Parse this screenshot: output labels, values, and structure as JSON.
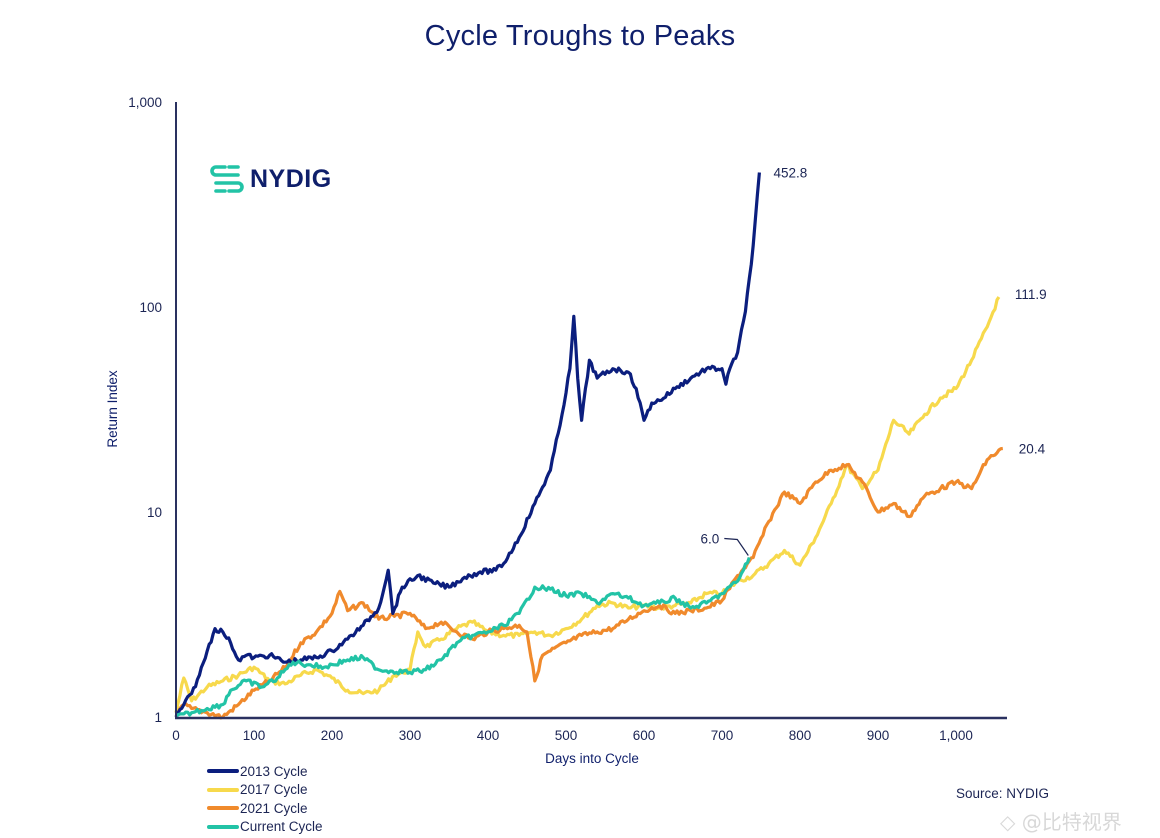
{
  "chart_data": {
    "type": "line",
    "title": "Cycle Troughs to Peaks",
    "xlabel": "Days into Cycle",
    "ylabel": "Return Index",
    "yscale": "log",
    "xlim": [
      0,
      1070
    ],
    "ylim": [
      1,
      1000
    ],
    "x_ticks": [
      0,
      100,
      200,
      300,
      400,
      500,
      600,
      700,
      800,
      900,
      1000
    ],
    "x_tick_labels": [
      "0",
      "100",
      "200",
      "300",
      "400",
      "500",
      "600",
      "700",
      "800",
      "900",
      "1,000"
    ],
    "y_ticks": [
      1,
      10,
      100,
      1000
    ],
    "y_tick_labels": [
      "1",
      "10",
      "100",
      "1,000"
    ],
    "grid": false,
    "legend_position": "bottom-left",
    "series": [
      {
        "name": "2013 Cycle",
        "color": "#0b1e7e",
        "end_label": "452.8",
        "points": [
          [
            0,
            1.0
          ],
          [
            10,
            1.15
          ],
          [
            20,
            1.3
          ],
          [
            30,
            1.6
          ],
          [
            40,
            2.1
          ],
          [
            50,
            2.7
          ],
          [
            60,
            2.6
          ],
          [
            70,
            2.3
          ],
          [
            80,
            1.9
          ],
          [
            90,
            2.0
          ],
          [
            100,
            1.95
          ],
          [
            120,
            2.0
          ],
          [
            140,
            1.85
          ],
          [
            160,
            1.9
          ],
          [
            180,
            1.95
          ],
          [
            200,
            2.1
          ],
          [
            220,
            2.4
          ],
          [
            240,
            2.8
          ],
          [
            260,
            3.4
          ],
          [
            272,
            5.2
          ],
          [
            278,
            3.2
          ],
          [
            290,
            4.3
          ],
          [
            310,
            4.9
          ],
          [
            330,
            4.5
          ],
          [
            350,
            4.3
          ],
          [
            370,
            4.8
          ],
          [
            390,
            5.1
          ],
          [
            410,
            5.2
          ],
          [
            420,
            5.6
          ],
          [
            440,
            7.5
          ],
          [
            460,
            11
          ],
          [
            480,
            16
          ],
          [
            495,
            30
          ],
          [
            505,
            50
          ],
          [
            510,
            90
          ],
          [
            515,
            45
          ],
          [
            520,
            28
          ],
          [
            530,
            55
          ],
          [
            540,
            45
          ],
          [
            560,
            50
          ],
          [
            580,
            48
          ],
          [
            590,
            40
          ],
          [
            600,
            28
          ],
          [
            610,
            34
          ],
          [
            620,
            35
          ],
          [
            640,
            40
          ],
          [
            660,
            45
          ],
          [
            680,
            50
          ],
          [
            700,
            50
          ],
          [
            705,
            42
          ],
          [
            710,
            50
          ],
          [
            720,
            60
          ],
          [
            730,
            95
          ],
          [
            740,
            200
          ],
          [
            748,
            452.8
          ]
        ]
      },
      {
        "name": "2017 Cycle",
        "color": "#f7d94c",
        "end_label": "111.9",
        "points": [
          [
            0,
            1.05
          ],
          [
            10,
            1.55
          ],
          [
            20,
            1.2
          ],
          [
            40,
            1.4
          ],
          [
            60,
            1.5
          ],
          [
            80,
            1.6
          ],
          [
            100,
            1.75
          ],
          [
            120,
            1.5
          ],
          [
            140,
            1.45
          ],
          [
            160,
            1.6
          ],
          [
            180,
            1.7
          ],
          [
            200,
            1.55
          ],
          [
            220,
            1.35
          ],
          [
            240,
            1.3
          ],
          [
            260,
            1.35
          ],
          [
            280,
            1.6
          ],
          [
            300,
            1.7
          ],
          [
            310,
            2.6
          ],
          [
            320,
            2.2
          ],
          [
            340,
            2.4
          ],
          [
            360,
            2.7
          ],
          [
            380,
            2.9
          ],
          [
            400,
            2.6
          ],
          [
            420,
            2.5
          ],
          [
            440,
            2.5
          ],
          [
            460,
            2.6
          ],
          [
            480,
            2.5
          ],
          [
            500,
            2.7
          ],
          [
            520,
            3.0
          ],
          [
            540,
            3.5
          ],
          [
            560,
            3.6
          ],
          [
            580,
            3.4
          ],
          [
            600,
            3.5
          ],
          [
            620,
            3.4
          ],
          [
            640,
            3.5
          ],
          [
            660,
            3.6
          ],
          [
            680,
            4.0
          ],
          [
            700,
            4.0
          ],
          [
            720,
            4.6
          ],
          [
            740,
            4.9
          ],
          [
            760,
            5.6
          ],
          [
            780,
            6.5
          ],
          [
            800,
            5.5
          ],
          [
            820,
            7.5
          ],
          [
            840,
            11
          ],
          [
            860,
            17
          ],
          [
            880,
            13
          ],
          [
            900,
            16
          ],
          [
            920,
            28
          ],
          [
            940,
            24
          ],
          [
            960,
            30
          ],
          [
            980,
            36
          ],
          [
            1000,
            40
          ],
          [
            1020,
            55
          ],
          [
            1040,
            80
          ],
          [
            1055,
            111.9
          ]
        ]
      },
      {
        "name": "2021 Cycle",
        "color": "#f08a2c",
        "end_label": "20.4",
        "points": [
          [
            0,
            1.0
          ],
          [
            10,
            1.15
          ],
          [
            20,
            1.1
          ],
          [
            40,
            1.05
          ],
          [
            60,
            1.0
          ],
          [
            80,
            1.15
          ],
          [
            100,
            1.35
          ],
          [
            120,
            1.5
          ],
          [
            140,
            1.75
          ],
          [
            160,
            2.3
          ],
          [
            180,
            2.6
          ],
          [
            200,
            3.2
          ],
          [
            210,
            4.1
          ],
          [
            220,
            3.3
          ],
          [
            240,
            3.6
          ],
          [
            260,
            3.0
          ],
          [
            280,
            3.1
          ],
          [
            300,
            3.2
          ],
          [
            320,
            2.7
          ],
          [
            340,
            2.9
          ],
          [
            360,
            2.6
          ],
          [
            380,
            2.4
          ],
          [
            400,
            2.6
          ],
          [
            420,
            2.7
          ],
          [
            440,
            2.8
          ],
          [
            450,
            2.6
          ],
          [
            460,
            1.5
          ],
          [
            470,
            2.0
          ],
          [
            480,
            2.1
          ],
          [
            500,
            2.3
          ],
          [
            520,
            2.5
          ],
          [
            540,
            2.6
          ],
          [
            560,
            2.7
          ],
          [
            580,
            3.0
          ],
          [
            600,
            3.3
          ],
          [
            620,
            3.5
          ],
          [
            640,
            3.2
          ],
          [
            660,
            3.3
          ],
          [
            680,
            3.4
          ],
          [
            700,
            3.7
          ],
          [
            720,
            4.9
          ],
          [
            740,
            6.0
          ],
          [
            760,
            9.0
          ],
          [
            780,
            12.5
          ],
          [
            800,
            11
          ],
          [
            820,
            14
          ],
          [
            840,
            16
          ],
          [
            860,
            17
          ],
          [
            880,
            14
          ],
          [
            900,
            10
          ],
          [
            920,
            11
          ],
          [
            940,
            9.5
          ],
          [
            960,
            12
          ],
          [
            980,
            13
          ],
          [
            1000,
            14
          ],
          [
            1020,
            13
          ],
          [
            1040,
            18
          ],
          [
            1060,
            20.4
          ]
        ]
      },
      {
        "name": "Current Cycle",
        "color": "#22c3a6",
        "end_label": "6.0",
        "points": [
          [
            0,
            1.0
          ],
          [
            20,
            1.05
          ],
          [
            40,
            1.1
          ],
          [
            60,
            1.15
          ],
          [
            70,
            1.35
          ],
          [
            90,
            1.5
          ],
          [
            110,
            1.4
          ],
          [
            130,
            1.55
          ],
          [
            150,
            1.85
          ],
          [
            170,
            1.8
          ],
          [
            190,
            1.75
          ],
          [
            220,
            1.9
          ],
          [
            240,
            1.95
          ],
          [
            260,
            1.7
          ],
          [
            300,
            1.65
          ],
          [
            320,
            1.7
          ],
          [
            340,
            1.9
          ],
          [
            360,
            2.3
          ],
          [
            380,
            2.5
          ],
          [
            400,
            2.6
          ],
          [
            420,
            2.8
          ],
          [
            440,
            3.2
          ],
          [
            460,
            4.3
          ],
          [
            480,
            4.2
          ],
          [
            500,
            3.9
          ],
          [
            520,
            4.0
          ],
          [
            540,
            3.6
          ],
          [
            560,
            4.0
          ],
          [
            580,
            3.8
          ],
          [
            600,
            3.5
          ],
          [
            620,
            3.6
          ],
          [
            640,
            3.8
          ],
          [
            660,
            3.4
          ],
          [
            680,
            3.6
          ],
          [
            700,
            4.0
          ],
          [
            720,
            4.6
          ],
          [
            735,
            6.0
          ]
        ]
      }
    ],
    "annotations": [
      {
        "text": "6.0",
        "series": "Current Cycle",
        "x": 735,
        "y": 6.0
      }
    ]
  },
  "logo": {
    "text": "NYDIG",
    "icon": "nydig-logo-icon"
  },
  "source": "Source: NYDIG",
  "watermark": "◇ @比特视界"
}
